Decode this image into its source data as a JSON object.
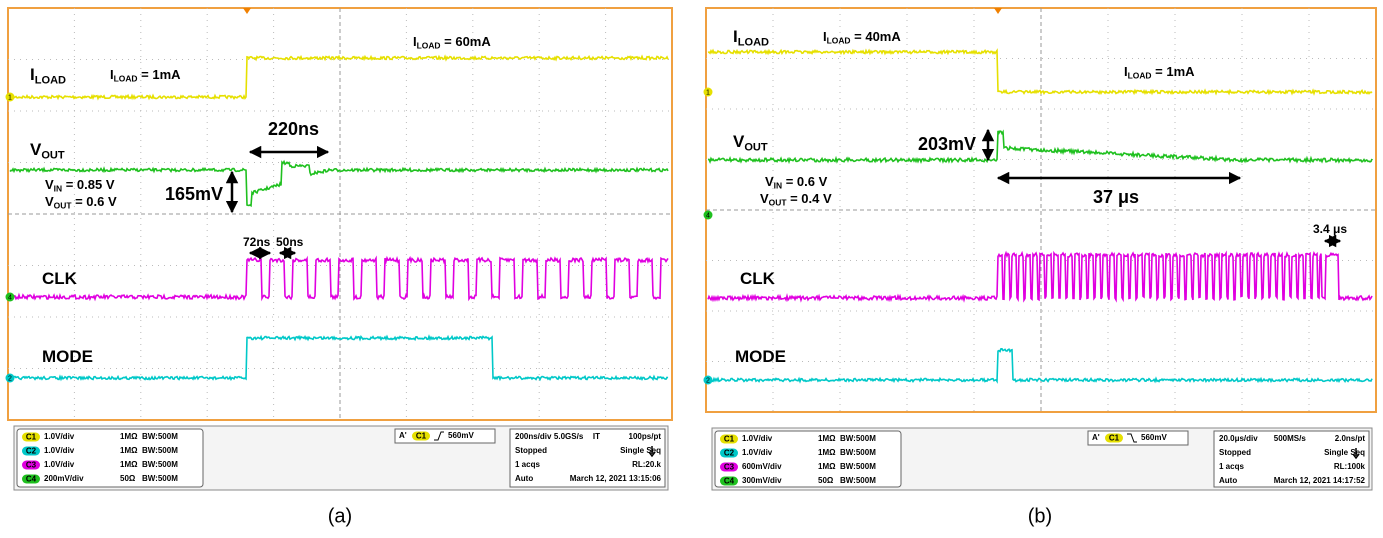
{
  "panels": [
    {
      "label": "(a)",
      "annotations": [
        {
          "text": "I",
          "sub": "LOAD"
        },
        {
          "text": "I",
          "sub": "LOAD",
          "rest": " = 1mA"
        },
        {
          "text": "I",
          "sub": "LOAD",
          "rest": " = 60mA"
        },
        {
          "text": "V",
          "sub": "OUT"
        },
        {
          "text": "220ns"
        },
        {
          "text": "V",
          "sub": "IN",
          "rest": " = 0.85 V"
        },
        {
          "text": "V",
          "sub": "OUT",
          "rest": " = 0.6 V"
        },
        {
          "text": "165mV"
        },
        {
          "text": "72ns"
        },
        {
          "text": "50ns"
        },
        {
          "text": "CLK"
        },
        {
          "text": "MODE"
        }
      ],
      "channel_markers": [
        "1",
        "4",
        "2"
      ],
      "channels": [
        {
          "badge": "C1",
          "scale": "1.0V/div",
          "impedance": "1MΩ",
          "bandwidth": "BW:500M"
        },
        {
          "badge": "C2",
          "scale": "1.0V/div",
          "impedance": "1MΩ",
          "bandwidth": "BW:500M"
        },
        {
          "badge": "C3",
          "scale": "1.0V/div",
          "impedance": "1MΩ",
          "bandwidth": "BW:500M"
        },
        {
          "badge": "C4",
          "scale": "200mV/div",
          "impedance": "50Ω",
          "bandwidth": "BW:500M"
        }
      ],
      "trigger": {
        "prefix": "A'",
        "source": "C1",
        "level": "560mV"
      },
      "acquisition": [
        [
          "200ns/div",
          "5.0GS/s",
          "IT",
          "100ps/pt"
        ],
        [
          "Stopped",
          "Single Seq"
        ],
        [
          "1 acqs",
          "RL:20.k"
        ],
        [
          "Auto",
          "March 12, 2021",
          "13:15:06"
        ]
      ]
    },
    {
      "label": "(b)",
      "annotations": [
        {
          "text": "I",
          "sub": "LOAD"
        },
        {
          "text": "I",
          "sub": "LOAD",
          "rest": " = 40mA"
        },
        {
          "text": "I",
          "sub": "LOAD",
          "rest": " = 1mA"
        },
        {
          "text": "V",
          "sub": "OUT"
        },
        {
          "text": "203mV"
        },
        {
          "text": "V",
          "sub": "IN",
          "rest": " = 0.6 V"
        },
        {
          "text": "V",
          "sub": "OUT",
          "rest": " = 0.4 V"
        },
        {
          "text": "37 μs"
        },
        {
          "text": "3.4 μs"
        },
        {
          "text": "CLK"
        },
        {
          "text": "MODE"
        }
      ],
      "channel_markers": [
        "1",
        "4",
        "2"
      ],
      "channels": [
        {
          "badge": "C1",
          "scale": "1.0V/div",
          "impedance": "1MΩ",
          "bandwidth": "BW:500M"
        },
        {
          "badge": "C2",
          "scale": "1.0V/div",
          "impedance": "1MΩ",
          "bandwidth": "BW:500M"
        },
        {
          "badge": "C3",
          "scale": "600mV/div",
          "impedance": "1MΩ",
          "bandwidth": "BW:500M"
        },
        {
          "badge": "C4",
          "scale": "300mV/div",
          "impedance": "50Ω",
          "bandwidth": "BW:500M"
        }
      ],
      "trigger": {
        "prefix": "A'",
        "source": "C1",
        "level": "560mV"
      },
      "acquisition": [
        [
          "20.0μs/div",
          "500MS/s",
          "2.0ns/pt"
        ],
        [
          "Stopped",
          "Single Seq"
        ],
        [
          "1 acqs",
          "RL:100k"
        ],
        [
          "Auto",
          "March 12, 2021",
          "14:17:52"
        ]
      ]
    }
  ]
}
